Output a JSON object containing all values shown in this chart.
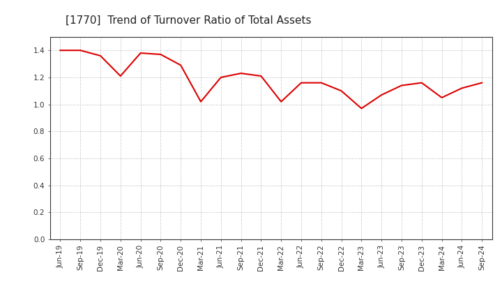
{
  "title": "[1770]  Trend of Turnover Ratio of Total Assets",
  "x_labels": [
    "Jun-19",
    "Sep-19",
    "Dec-19",
    "Mar-20",
    "Jun-20",
    "Sep-20",
    "Dec-20",
    "Mar-21",
    "Jun-21",
    "Sep-21",
    "Dec-21",
    "Mar-22",
    "Jun-22",
    "Sep-22",
    "Dec-22",
    "Mar-23",
    "Jun-23",
    "Sep-23",
    "Dec-23",
    "Mar-24",
    "Jun-24",
    "Sep-24"
  ],
  "values": [
    1.4,
    1.4,
    1.36,
    1.21,
    1.38,
    1.37,
    1.29,
    1.02,
    1.2,
    1.23,
    1.21,
    1.02,
    1.16,
    1.16,
    1.1,
    0.97,
    1.07,
    1.14,
    1.16,
    1.05,
    1.12,
    1.16
  ],
  "line_color": "#dd0000",
  "line_width": 1.5,
  "ylim": [
    0.0,
    1.5
  ],
  "yticks": [
    0.0,
    0.2,
    0.4,
    0.6,
    0.8,
    1.0,
    1.2,
    1.4
  ],
  "grid_color": "#999999",
  "background_color": "#ffffff",
  "title_fontsize": 11,
  "tick_fontsize": 7.5
}
